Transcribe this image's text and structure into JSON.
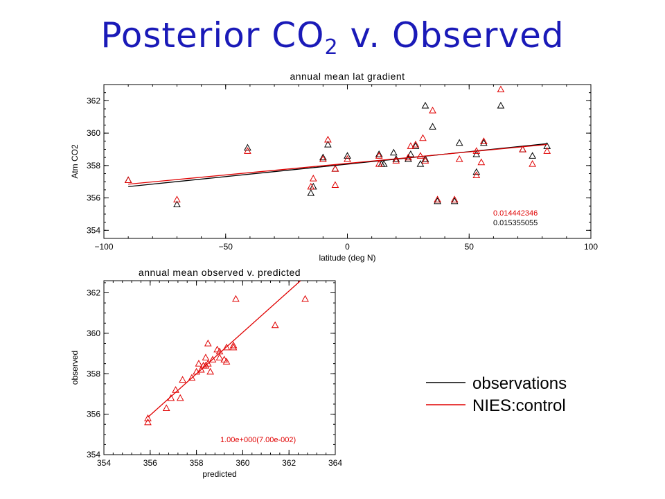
{
  "page": {
    "title_main": "Posterior CO",
    "title_sub": "2",
    "title_tail": " v. Observed"
  },
  "colors": {
    "observations": "#000000",
    "model": "#e00000",
    "title": "#1a1ab8"
  },
  "legend": {
    "position": "right",
    "items": [
      {
        "label": "observations",
        "color": "#000000"
      },
      {
        "label": "NIES:control",
        "color": "#e00000"
      }
    ]
  },
  "chart_data": [
    {
      "type": "scatter",
      "title": "annual mean lat gradient",
      "xlabel": "latitude (deg N)",
      "ylabel": "Atm CO2",
      "xlim": [
        -100,
        100
      ],
      "ylim": [
        353.5,
        363
      ],
      "xticks": [
        -100,
        -50,
        0,
        50,
        100
      ],
      "yticks": [
        354,
        356,
        358,
        360,
        362
      ],
      "grid": false,
      "annotations": [
        {
          "text": "0.014442346",
          "color": "#e00000"
        },
        {
          "text": "0.015355055",
          "color": "#000000"
        }
      ],
      "series": [
        {
          "name": "observations",
          "marker": "triangle",
          "color": "#000000",
          "points": [
            [
              -90,
              357.1
            ],
            [
              -70,
              355.6
            ],
            [
              -41,
              359.1
            ],
            [
              -15,
              356.3
            ],
            [
              -14,
              356.7
            ],
            [
              -10,
              358.5
            ],
            [
              -8,
              359.3
            ],
            [
              -5,
              357.8
            ],
            [
              0,
              358.6
            ],
            [
              13,
              358.7
            ],
            [
              14,
              358.1
            ],
            [
              15,
              358.1
            ],
            [
              19,
              358.8
            ],
            [
              20,
              358.4
            ],
            [
              25,
              358.4
            ],
            [
              26,
              358.7
            ],
            [
              28,
              359.2
            ],
            [
              30,
              358.1
            ],
            [
              32,
              361.7
            ],
            [
              32,
              358.4
            ],
            [
              35,
              360.4
            ],
            [
              37,
              355.8
            ],
            [
              44,
              355.8
            ],
            [
              46,
              359.4
            ],
            [
              53,
              357.6
            ],
            [
              53,
              358.7
            ],
            [
              56,
              359.4
            ],
            [
              63,
              361.7
            ],
            [
              72,
              359.0
            ],
            [
              76,
              358.6
            ],
            [
              82,
              359.2
            ]
          ],
          "trend": [
            [
              -90,
              356.7
            ],
            [
              82,
              359.35
            ]
          ]
        },
        {
          "name": "NIES:control",
          "marker": "triangle",
          "color": "#e00000",
          "points": [
            [
              -90,
              357.1
            ],
            [
              -70,
              355.9
            ],
            [
              -41,
              358.9
            ],
            [
              -15,
              356.7
            ],
            [
              -14,
              357.2
            ],
            [
              -10,
              358.4
            ],
            [
              -8,
              359.6
            ],
            [
              -5,
              356.8
            ],
            [
              -5,
              357.8
            ],
            [
              0,
              358.4
            ],
            [
              13,
              358.1
            ],
            [
              13,
              358.6
            ],
            [
              20,
              358.3
            ],
            [
              25,
              358.5
            ],
            [
              26,
              359.2
            ],
            [
              28,
              359.3
            ],
            [
              30,
              358.6
            ],
            [
              31,
              359.7
            ],
            [
              32,
              358.3
            ],
            [
              35,
              361.4
            ],
            [
              37,
              355.9
            ],
            [
              44,
              355.9
            ],
            [
              46,
              358.4
            ],
            [
              53,
              357.4
            ],
            [
              53,
              358.9
            ],
            [
              55,
              358.2
            ],
            [
              56,
              359.5
            ],
            [
              63,
              362.7
            ],
            [
              72,
              359.0
            ],
            [
              76,
              358.1
            ],
            [
              82,
              358.9
            ]
          ],
          "trend": [
            [
              -90,
              356.85
            ],
            [
              82,
              359.3
            ]
          ]
        }
      ]
    },
    {
      "type": "scatter",
      "title": "annual mean observed v. predicted",
      "xlabel": "predicted",
      "ylabel": "observed",
      "xlim": [
        354,
        364
      ],
      "ylim": [
        354,
        362.6
      ],
      "xticks": [
        354,
        356,
        358,
        360,
        362,
        364
      ],
      "yticks": [
        354,
        356,
        358,
        360,
        362
      ],
      "grid": false,
      "annotations": [
        {
          "text": "1.00e+000(7.00e-002)",
          "color": "#e00000"
        }
      ],
      "series": [
        {
          "name": "NIES:control",
          "marker": "triangle",
          "color": "#e00000",
          "points": [
            [
              355.9,
              355.6
            ],
            [
              355.9,
              355.8
            ],
            [
              356.7,
              356.3
            ],
            [
              356.9,
              356.8
            ],
            [
              357.1,
              357.2
            ],
            [
              357.3,
              356.8
            ],
            [
              357.4,
              357.7
            ],
            [
              357.8,
              357.8
            ],
            [
              358.0,
              358.1
            ],
            [
              358.1,
              358.5
            ],
            [
              358.2,
              358.2
            ],
            [
              358.3,
              358.4
            ],
            [
              358.4,
              358.4
            ],
            [
              358.4,
              358.8
            ],
            [
              358.5,
              358.5
            ],
            [
              358.5,
              359.5
            ],
            [
              358.6,
              358.1
            ],
            [
              358.7,
              358.7
            ],
            [
              358.9,
              359.2
            ],
            [
              359.0,
              358.8
            ],
            [
              359.0,
              359.1
            ],
            [
              359.2,
              358.7
            ],
            [
              359.3,
              358.6
            ],
            [
              359.3,
              359.3
            ],
            [
              359.6,
              359.4
            ],
            [
              359.6,
              359.3
            ],
            [
              359.7,
              361.7
            ],
            [
              361.4,
              360.4
            ],
            [
              362.7,
              361.7
            ]
          ],
          "trend": [
            [
              355.9,
              355.85
            ],
            [
              362.5,
              362.6
            ]
          ]
        }
      ]
    }
  ]
}
